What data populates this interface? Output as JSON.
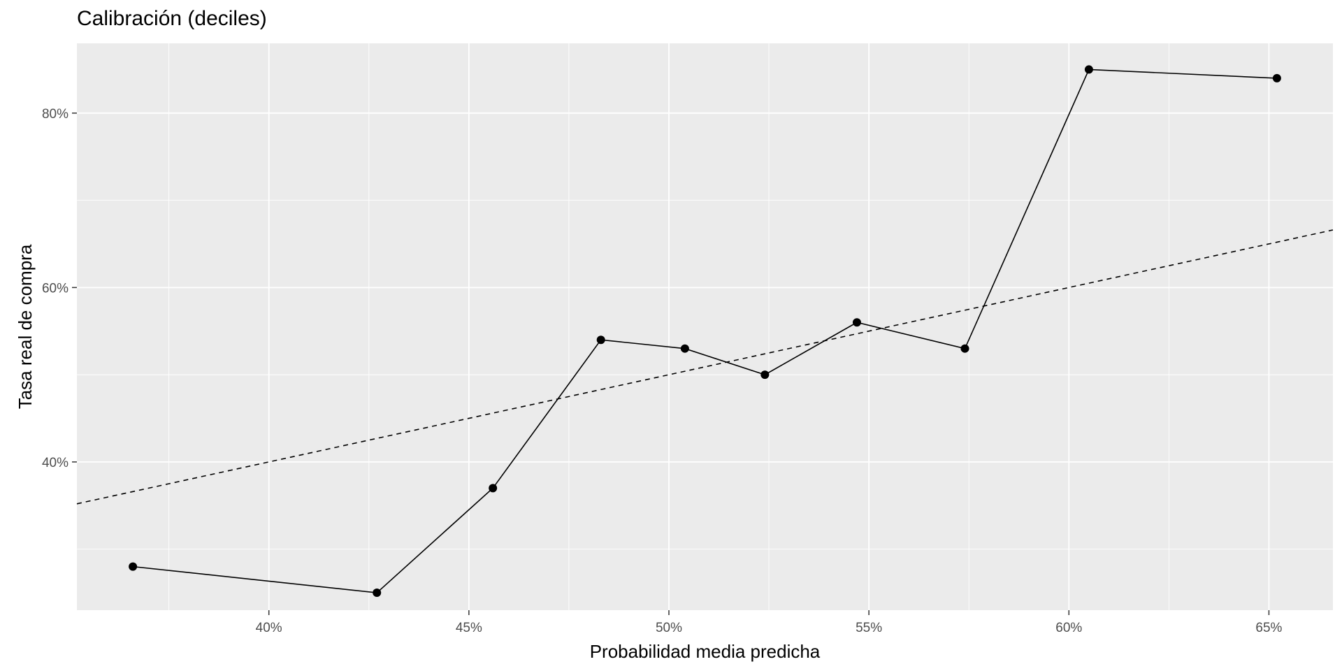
{
  "chart_data": {
    "type": "line",
    "title": "Calibración (deciles)",
    "xlabel": "Probabilidad media predicha",
    "ylabel": "Tasa real de compra",
    "xlim": [
      0.352,
      0.666
    ],
    "ylim": [
      0.23,
      0.88
    ],
    "x_ticks": [
      0.4,
      0.45,
      0.5,
      0.55,
      0.6,
      0.65
    ],
    "x_tick_labels": [
      "40%",
      "45%",
      "50%",
      "55%",
      "60%",
      "65%"
    ],
    "y_ticks": [
      0.4,
      0.6,
      0.8
    ],
    "y_tick_labels": [
      "40%",
      "60%",
      "80%"
    ],
    "grid": true,
    "series": [
      {
        "x": [
          0.366,
          0.427,
          0.456,
          0.483,
          0.504,
          0.524,
          0.547,
          0.574,
          0.605,
          0.652
        ],
        "y": [
          0.28,
          0.25,
          0.37,
          0.54,
          0.53,
          0.5,
          0.56,
          0.53,
          0.85,
          0.84
        ]
      }
    ],
    "reference_line": {
      "style": "dashed",
      "slope": 1,
      "intercept": 0
    }
  }
}
